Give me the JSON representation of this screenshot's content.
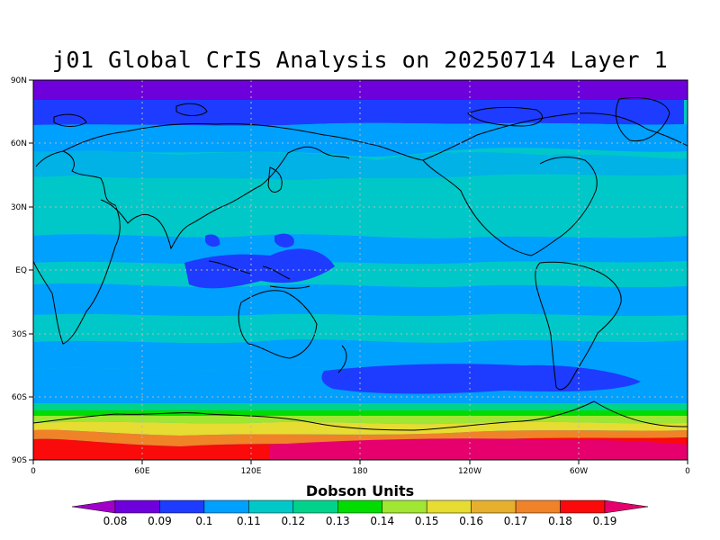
{
  "title": "j01 Global CrIS Analysis on 20250714 Layer 1",
  "map": {
    "lat_labels": [
      "90N",
      "60N",
      "30N",
      "EQ",
      "30S",
      "60S",
      "90S"
    ],
    "lon_labels": [
      "0",
      "60E",
      "120E",
      "180",
      "120W",
      "60W",
      "0"
    ],
    "grid": true
  },
  "colorbar": {
    "title": "Dobson Units",
    "tick_labels": [
      "0.08",
      "0.09",
      "0.1",
      "0.11",
      "0.12",
      "0.13",
      "0.14",
      "0.15",
      "0.16",
      "0.17",
      "0.18",
      "0.19"
    ],
    "colors": [
      "#a000c8",
      "#6e00dc",
      "#1e3cff",
      "#00a0ff",
      "#00c8c8",
      "#00d28c",
      "#00dc00",
      "#a0e632",
      "#e6dc32",
      "#e6af2d",
      "#f08228",
      "#fa0a0a",
      "#e6006e"
    ]
  }
}
